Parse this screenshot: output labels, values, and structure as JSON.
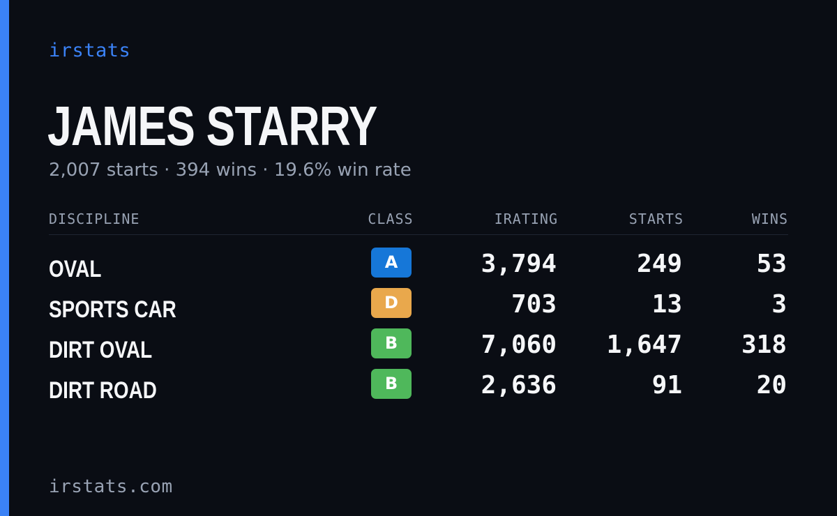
{
  "brand": "irstats",
  "driver": {
    "name": "JAMES STARRY",
    "summary": "2,007 starts · 394 wins · 19.6% win rate"
  },
  "table": {
    "headers": {
      "discipline": "DISCIPLINE",
      "class": "CLASS",
      "irating": "IRATING",
      "starts": "STARTS",
      "wins": "WINS"
    },
    "rows": [
      {
        "discipline": "OVAL",
        "class": "A",
        "class_color": "#1677d8",
        "irating": "3,794",
        "starts": "249",
        "wins": "53"
      },
      {
        "discipline": "SPORTS CAR",
        "class": "D",
        "class_color": "#e9a84c",
        "irating": "703",
        "starts": "13",
        "wins": "3"
      },
      {
        "discipline": "DIRT OVAL",
        "class": "B",
        "class_color": "#4fb85b",
        "irating": "7,060",
        "starts": "1,647",
        "wins": "318"
      },
      {
        "discipline": "DIRT ROAD",
        "class": "B",
        "class_color": "#4fb85b",
        "irating": "2,636",
        "starts": "91",
        "wins": "20"
      }
    ]
  },
  "footer": "irstats.com",
  "colors": {
    "accent": "#3b82f6",
    "background": "#0a0d14"
  }
}
